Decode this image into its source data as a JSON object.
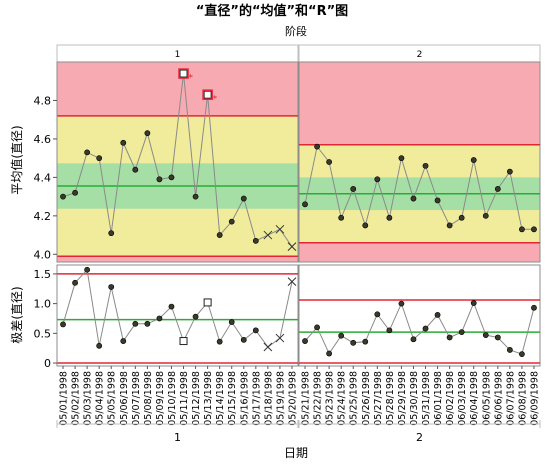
{
  "chart_data": {
    "type": "control-chart",
    "title": "“直径”的“均值”和“R”图",
    "phase_title": "阶段",
    "x_label": "日期",
    "phases": [
      {
        "name": "1",
        "dates": [
          "05/01/1998",
          "05/02/1998",
          "05/03/1998",
          "05/04/1998",
          "05/05/1998",
          "05/06/1998",
          "05/07/1998",
          "05/08/1998",
          "05/09/1998",
          "05/10/1998",
          "05/11/1998",
          "05/12/1998",
          "05/13/1998",
          "05/14/1998",
          "05/15/1998",
          "05/16/1998",
          "05/17/1998",
          "05/18/1998",
          "05/19/1998",
          "05/20/1998"
        ],
        "xbar": {
          "center": 4.355,
          "ucl": 4.72,
          "lcl": 3.99,
          "zone_upper": 4.473,
          "zone_lower": 4.237,
          "values": [
            4.3,
            4.32,
            4.53,
            4.5,
            4.11,
            4.58,
            4.44,
            4.63,
            4.39,
            4.4,
            4.94,
            4.3,
            4.83,
            4.1,
            4.17,
            4.29,
            4.07,
            4.1,
            4.13,
            4.04
          ],
          "markers": [
            "dot",
            "dot",
            "dot",
            "dot",
            "dot",
            "dot",
            "dot",
            "dot",
            "dot",
            "dot",
            "square",
            "dot",
            "square",
            "dot",
            "dot",
            "dot",
            "dot",
            "x",
            "x",
            "x"
          ],
          "flags": [
            null,
            null,
            null,
            null,
            null,
            null,
            null,
            null,
            null,
            null,
            "*",
            null,
            "*",
            null,
            null,
            null,
            null,
            null,
            null,
            null
          ]
        },
        "range": {
          "center": 0.73,
          "ucl": 1.5,
          "lcl": 0,
          "values": [
            0.65,
            1.35,
            1.57,
            0.29,
            1.28,
            0.37,
            0.66,
            0.66,
            0.75,
            0.95,
            0.37,
            0.78,
            1.02,
            0.36,
            0.69,
            0.39,
            0.55,
            0.27,
            0.42,
            1.37
          ],
          "markers": [
            "dot",
            "dot",
            "dot",
            "dot",
            "dot",
            "dot",
            "dot",
            "dot",
            "dot",
            "dot",
            "square",
            "dot",
            "square",
            "dot",
            "dot",
            "dot",
            "dot",
            "x",
            "x",
            "x"
          ]
        }
      },
      {
        "name": "2",
        "dates": [
          "05/21/1998",
          "05/22/1998",
          "05/23/1998",
          "05/24/1998",
          "05/25/1998",
          "05/26/1998",
          "05/27/1998",
          "05/28/1998",
          "05/29/1998",
          "05/30/1998",
          "05/31/1998",
          "06/01/1998",
          "06/02/1998",
          "06/03/1998",
          "06/04/1998",
          "06/05/1998",
          "06/06/1998",
          "06/07/1998",
          "06/08/1998",
          "06/09/1998"
        ],
        "xbar": {
          "center": 4.315,
          "ucl": 4.57,
          "lcl": 4.06,
          "zone_upper": 4.4,
          "zone_lower": 4.23,
          "values": [
            4.26,
            4.56,
            4.48,
            4.19,
            4.34,
            4.15,
            4.39,
            4.19,
            4.5,
            4.29,
            4.46,
            4.28,
            4.15,
            4.19,
            4.49,
            4.2,
            4.34,
            4.43,
            4.13,
            4.13
          ],
          "markers": [
            "dot",
            "dot",
            "dot",
            "dot",
            "dot",
            "dot",
            "dot",
            "dot",
            "dot",
            "dot",
            "dot",
            "dot",
            "dot",
            "dot",
            "dot",
            "dot",
            "dot",
            "dot",
            "dot",
            "dot"
          ],
          "flags": [
            null,
            null,
            null,
            null,
            null,
            null,
            null,
            null,
            null,
            null,
            null,
            null,
            null,
            null,
            null,
            null,
            null,
            null,
            null,
            null
          ]
        },
        "range": {
          "center": 0.52,
          "ucl": 1.06,
          "lcl": 0,
          "values": [
            0.37,
            0.6,
            0.16,
            0.46,
            0.34,
            0.36,
            0.82,
            0.55,
            1.0,
            0.4,
            0.58,
            0.81,
            0.43,
            0.52,
            1.01,
            0.47,
            0.43,
            0.22,
            0.15,
            0.93
          ],
          "markers": [
            "dot",
            "dot",
            "dot",
            "dot",
            "dot",
            "dot",
            "dot",
            "dot",
            "dot",
            "dot",
            "dot",
            "dot",
            "dot",
            "dot",
            "dot",
            "dot",
            "dot",
            "dot",
            "dot",
            "dot"
          ]
        }
      }
    ],
    "xbar_panel": {
      "ylabel": "平均值(直径)",
      "ylim": [
        3.96,
        5.0
      ],
      "ticks": [
        4.0,
        4.2,
        4.4,
        4.6,
        4.8
      ],
      "tick_labels": [
        "4.0",
        "4.2",
        "4.4",
        "4.6",
        "4.8"
      ]
    },
    "range_panel": {
      "ylabel": "极差(直径)",
      "ylim": [
        -0.05,
        1.65
      ],
      "ticks": [
        0,
        0.5,
        1.0,
        1.5
      ],
      "tick_labels": [
        "0",
        "0.5",
        "1.0",
        "1.5"
      ]
    },
    "colors": {
      "red_zone": "#f8aab3",
      "yellow_zone": "#f0ec9c",
      "green_zone": "#a6dfa6",
      "limit_line": "#e32636",
      "center_line": "#27ad34",
      "data_line": "#8a8a8a",
      "point": "#3a3a2a",
      "flag_red": "#e32636"
    }
  }
}
